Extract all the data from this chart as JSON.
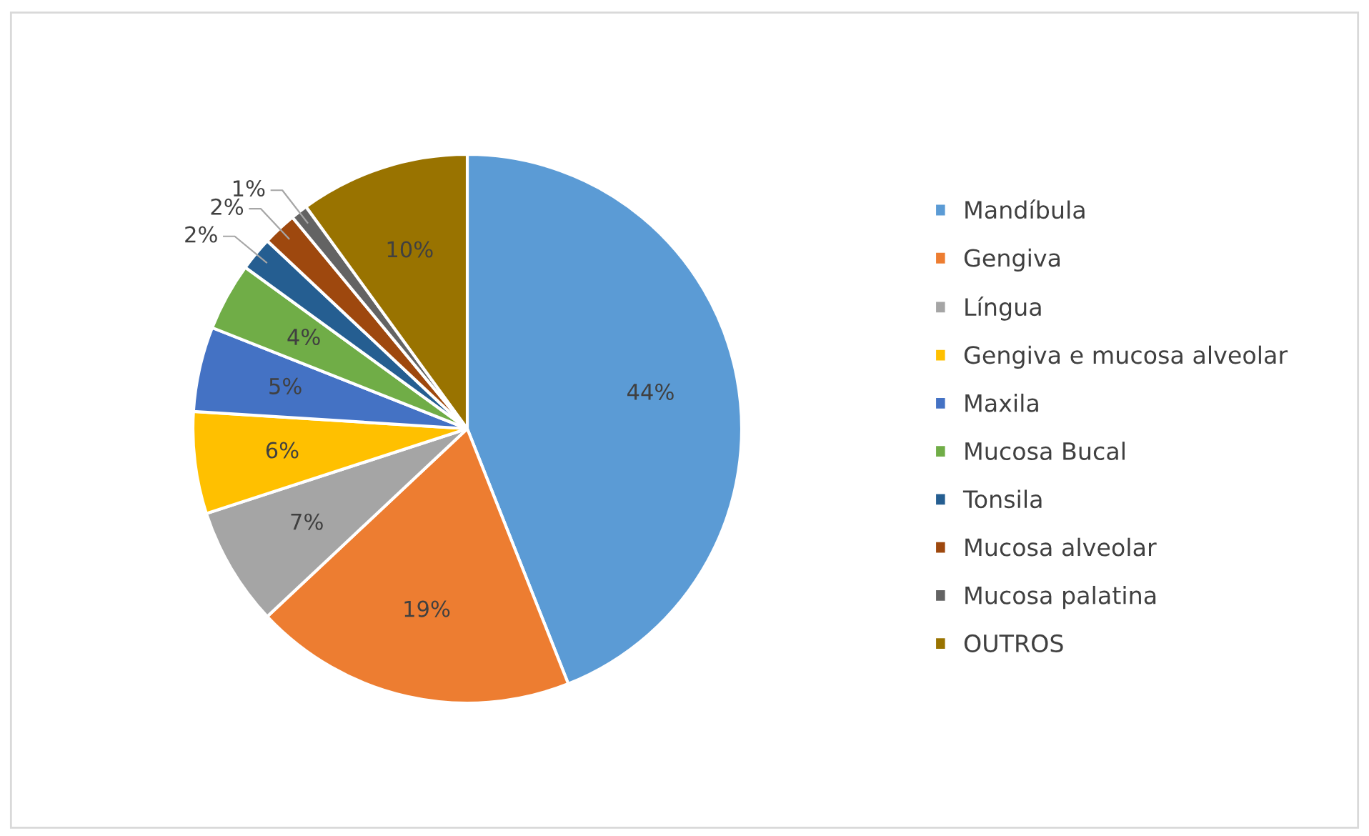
{
  "chart_data": {
    "type": "pie",
    "categories": [
      "Mandíbula",
      "Gengiva",
      "Língua",
      "Gengiva e mucosa alveolar",
      "Maxila",
      "Mucosa Bucal",
      "Tonsila",
      "Mucosa alveolar",
      "Mucosa palatina",
      "OUTROS"
    ],
    "values": [
      44,
      19,
      7,
      6,
      5,
      4,
      2,
      2,
      1,
      10
    ],
    "value_labels": [
      "44%",
      "19%",
      "7%",
      "6%",
      "5%",
      "4%",
      "2%",
      "2%",
      "1%",
      "10%"
    ],
    "colors": [
      "#5b9bd5",
      "#ed7d31",
      "#a5a5a5",
      "#ffc000",
      "#4472c4",
      "#70ad47",
      "#255e91",
      "#9e480e",
      "#636363",
      "#997300"
    ],
    "legend": "right"
  }
}
